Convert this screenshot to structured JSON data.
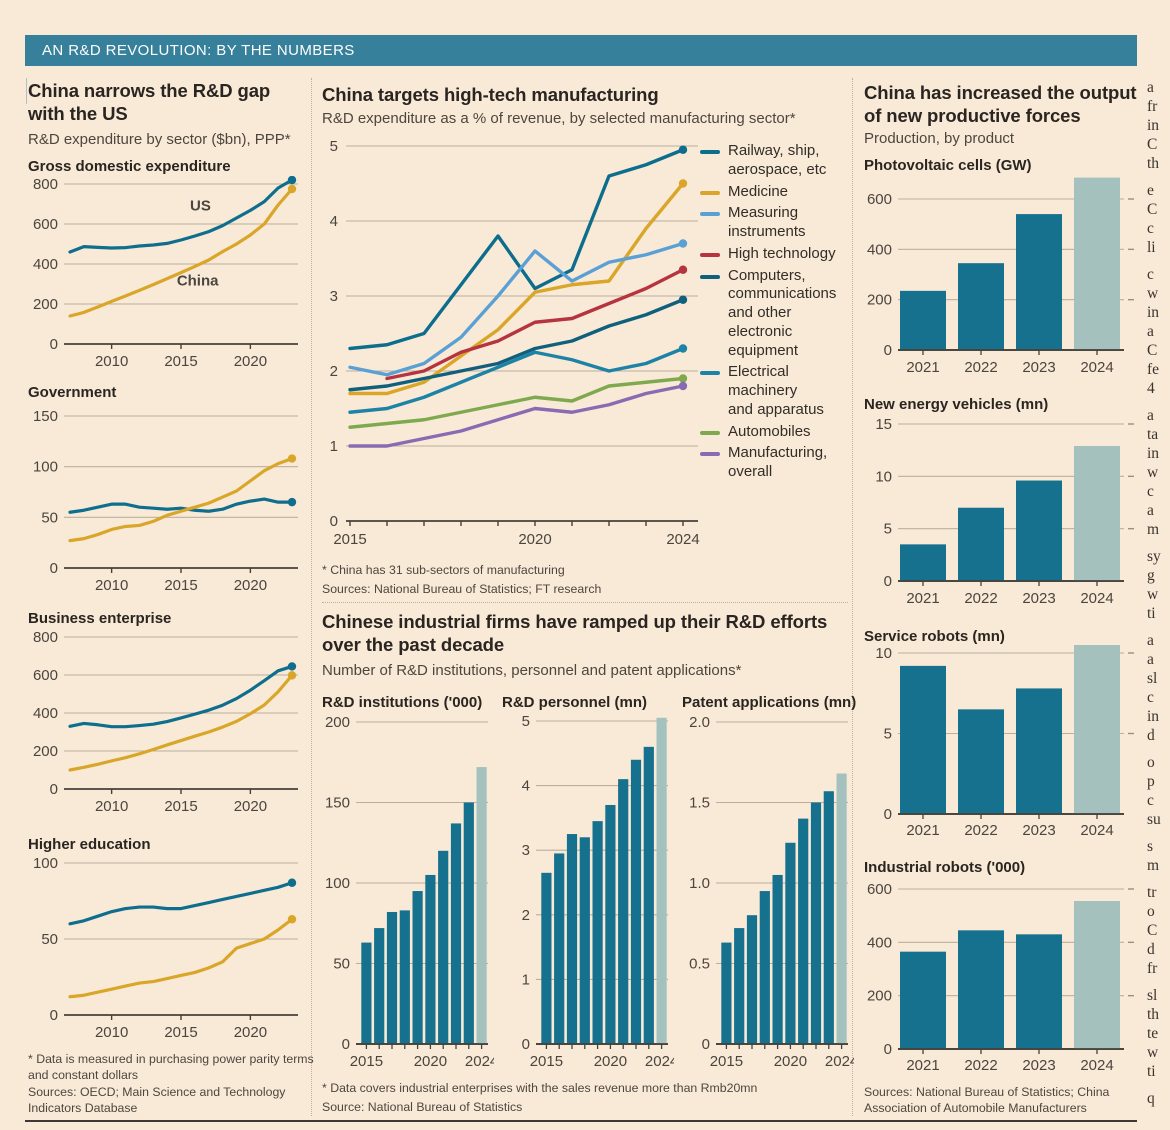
{
  "banner": {
    "title": "AN R&D REVOLUTION: BY THE NUMBERS"
  },
  "palette": {
    "background": "#f9ead8",
    "banner_bg": "#37809b",
    "grid": "#bcae9d",
    "axis": "#45403b",
    "tick_text": "#4b453e",
    "bar_teal": "#16718f",
    "bar_highlight": "#a5c1bd",
    "us_teal": "#0f6e8d",
    "china_gold": "#d9a629"
  },
  "left": {
    "headline": "China narrows the R&D gap with the US",
    "subtitle": "R&D expenditure by sector ($bn), PPP*",
    "footnote": "* Data is measured in purchasing power parity terms and constant dollars",
    "sources": "Sources: OECD; Main Science and Technology Indicators Database"
  },
  "mid_top": {
    "headline": "China targets high-tech manufacturing",
    "subtitle": "R&D expenditure as a % of revenue, by selected manufacturing sector*",
    "footnote": "* China has 31 sub-sectors of manufacturing",
    "sources": "Sources: National Bureau of Statistics; FT research"
  },
  "mid_bottom": {
    "headline": "Chinese industrial firms have ramped up their R&D efforts over the past decade",
    "subtitle": "Number of R&D institutions, personnel and patent applications*",
    "footnote": "* Data covers industrial enterprises with the sales revenue more than Rmb20mn",
    "sources": "Source: National Bureau of Statistics"
  },
  "right": {
    "headline": "China has increased the output of new productive forces",
    "subtitle": "Production, by product",
    "sources": "Sources: National Bureau of Statistics; China Association of Automobile Manufacturers"
  },
  "clipped_column": {
    "fragments": [
      "a",
      "fr",
      "in",
      "C",
      "th",
      "",
      "e",
      "C",
      "c",
      "li",
      "",
      "c",
      "w",
      "in",
      "a",
      "C",
      "fe",
      "4",
      "",
      "a",
      "ta",
      "in",
      "w",
      "c",
      "a",
      "m",
      "",
      "sy",
      "g",
      "w",
      "ti",
      "",
      "a",
      "a",
      "sl",
      "c",
      "in",
      "d",
      "",
      "o",
      "p",
      "c",
      "su",
      "",
      "s",
      "m",
      "",
      "tr",
      "o",
      "C",
      "d",
      "fr",
      "",
      "sl",
      "th",
      "te",
      "w",
      "ti",
      "",
      "q"
    ]
  },
  "chart_data": [
    {
      "id": "gde",
      "type": "line",
      "title": "Gross domestic expenditure",
      "x_start": 2007,
      "x_end": 2023,
      "x_tick_labels": [
        2010,
        2015,
        2020
      ],
      "yticks": [
        0,
        200,
        400,
        600,
        800
      ],
      "ytick_labels": [
        "0",
        "200",
        "400",
        "600",
        "800"
      ],
      "series": [
        {
          "name": "US",
          "color": "#0f6e8d",
          "values": [
            460,
            487,
            483,
            480,
            482,
            490,
            495,
            503,
            520,
            540,
            562,
            592,
            630,
            668,
            712,
            780,
            820
          ]
        },
        {
          "name": "China",
          "color": "#d9a629",
          "values": [
            140,
            158,
            185,
            213,
            240,
            268,
            297,
            327,
            357,
            388,
            420,
            462,
            500,
            545,
            600,
            695,
            775
          ]
        }
      ],
      "annotations": [
        {
          "text": "US",
          "year": 2016.4,
          "value": 668,
          "color": "#0f6e8d"
        },
        {
          "text": "China",
          "year": 2016.2,
          "value": 292,
          "color": "#d9a629"
        }
      ]
    },
    {
      "id": "government",
      "type": "line",
      "title": "Government",
      "x_start": 2007,
      "x_end": 2023,
      "x_tick_labels": [
        2010,
        2015,
        2020
      ],
      "yticks": [
        0,
        50,
        100,
        150
      ],
      "ytick_labels": [
        "0",
        "50",
        "100",
        "150"
      ],
      "series": [
        {
          "name": "US",
          "color": "#0f6e8d",
          "values": [
            55,
            57,
            60,
            63,
            63,
            60,
            59,
            58,
            59,
            57,
            56,
            58,
            63,
            66,
            68,
            65,
            65
          ]
        },
        {
          "name": "China",
          "color": "#d9a629",
          "values": [
            27,
            29,
            33,
            38,
            41,
            42,
            46,
            52,
            56,
            60,
            64,
            70,
            76,
            86,
            96,
            103,
            108
          ]
        }
      ]
    },
    {
      "id": "business",
      "type": "line",
      "title": "Business enterprise",
      "x_start": 2007,
      "x_end": 2023,
      "x_tick_labels": [
        2010,
        2015,
        2020
      ],
      "yticks": [
        0,
        200,
        400,
        600,
        800
      ],
      "ytick_labels": [
        "0",
        "200",
        "400",
        "600",
        "800"
      ],
      "series": [
        {
          "name": "US",
          "color": "#0f6e8d",
          "values": [
            330,
            345,
            338,
            328,
            328,
            334,
            341,
            355,
            374,
            394,
            415,
            441,
            476,
            520,
            570,
            622,
            645
          ]
        },
        {
          "name": "China",
          "color": "#d9a629",
          "values": [
            100,
            114,
            130,
            148,
            165,
            185,
            208,
            232,
            255,
            278,
            300,
            326,
            356,
            396,
            442,
            512,
            598
          ]
        }
      ]
    },
    {
      "id": "higher_education",
      "type": "line",
      "title": "Higher education",
      "x_start": 2007,
      "x_end": 2023,
      "x_tick_labels": [
        2010,
        2015,
        2020
      ],
      "yticks": [
        0,
        50,
        100
      ],
      "ytick_labels": [
        "0",
        "50",
        "100"
      ],
      "series": [
        {
          "name": "US",
          "color": "#0f6e8d",
          "values": [
            60,
            62,
            65,
            68,
            70,
            71,
            71,
            70,
            70,
            72,
            74,
            76,
            78,
            80,
            82,
            84,
            87
          ]
        },
        {
          "name": "China",
          "color": "#d9a629",
          "values": [
            12,
            13,
            15,
            17,
            19,
            21,
            22,
            24,
            26,
            28,
            31,
            35,
            44,
            47,
            50,
            56,
            63
          ]
        }
      ]
    },
    {
      "id": "sectors",
      "type": "line",
      "title": null,
      "x_start": 2015,
      "x_end": 2024,
      "x_tick_labels": [
        2015,
        2020,
        2024
      ],
      "yticks": [
        0,
        1,
        2,
        3,
        4,
        5
      ],
      "ytick_labels": [
        "0",
        "1",
        "2",
        "3",
        "4",
        "5"
      ],
      "series": [
        {
          "name": "Railway, ship,\naerospace, etc",
          "color": "#0d6d8c",
          "values": [
            2.3,
            2.35,
            2.5,
            3.15,
            3.8,
            3.1,
            3.35,
            4.6,
            4.75,
            4.95
          ]
        },
        {
          "name": "Medicine",
          "color": "#d9a629",
          "values": [
            1.7,
            1.7,
            1.85,
            2.2,
            2.55,
            3.05,
            3.15,
            3.2,
            3.9,
            4.5
          ]
        },
        {
          "name": "Measuring\ninstruments",
          "color": "#5aa0d5",
          "values": [
            2.05,
            1.95,
            2.1,
            2.45,
            3.0,
            3.6,
            3.2,
            3.45,
            3.55,
            3.7
          ]
        },
        {
          "name": "High technology",
          "color": "#b5343f",
          "values": [
            null,
            1.9,
            2.0,
            2.25,
            2.4,
            2.65,
            2.7,
            2.9,
            3.1,
            3.35
          ]
        },
        {
          "name": "Computers,\ncommunications\nand other\nelectronic\nequipment",
          "color": "#10607d",
          "values": [
            1.75,
            1.8,
            1.9,
            2.0,
            2.1,
            2.3,
            2.4,
            2.6,
            2.75,
            2.95
          ]
        },
        {
          "name": "Electrical\nmachinery\nand apparatus",
          "color": "#1d83a6",
          "values": [
            1.45,
            1.5,
            1.65,
            1.85,
            2.05,
            2.25,
            2.15,
            2.0,
            2.1,
            2.3
          ]
        },
        {
          "name": "Automobiles",
          "color": "#7ea94e",
          "values": [
            1.25,
            1.3,
            1.35,
            1.45,
            1.55,
            1.65,
            1.6,
            1.8,
            1.85,
            1.9
          ]
        },
        {
          "name": "Manufacturing,\noverall",
          "color": "#8a6ab2",
          "values": [
            1.0,
            1.0,
            1.1,
            1.2,
            1.35,
            1.5,
            1.45,
            1.55,
            1.7,
            1.8
          ]
        }
      ]
    },
    {
      "id": "institutions",
      "type": "bar",
      "title": "R&D institutions ('000)",
      "categories": [
        2015,
        2016,
        2017,
        2018,
        2019,
        2020,
        2021,
        2022,
        2023,
        2024
      ],
      "x_tick_labels": [
        2015,
        2020,
        2024
      ],
      "yticks": [
        0,
        50,
        100,
        150,
        200
      ],
      "ytick_labels": [
        "0",
        "50",
        "100",
        "150",
        "200"
      ],
      "values": [
        63,
        72,
        82,
        83,
        95,
        105,
        120,
        137,
        150,
        172
      ],
      "bar_color": "#16718f",
      "highlight_last": true,
      "highlight_color": "#a5c1bd"
    },
    {
      "id": "personnel",
      "type": "bar",
      "title": "R&D personnel (mn)",
      "categories": [
        2015,
        2016,
        2017,
        2018,
        2019,
        2020,
        2021,
        2022,
        2023,
        2024
      ],
      "x_tick_labels": [
        2015,
        2020,
        2024
      ],
      "yticks": [
        0,
        1,
        2,
        3,
        4,
        5
      ],
      "ytick_labels": [
        "0",
        "1",
        "2",
        "3",
        "4",
        "5"
      ],
      "values": [
        2.65,
        2.95,
        3.25,
        3.2,
        3.45,
        3.7,
        4.1,
        4.4,
        4.6,
        5.05
      ],
      "bar_color": "#16718f",
      "highlight_last": true,
      "highlight_color": "#a5c1bd"
    },
    {
      "id": "patents",
      "type": "bar",
      "title": "Patent applications (mn)",
      "categories": [
        2015,
        2016,
        2017,
        2018,
        2019,
        2020,
        2021,
        2022,
        2023,
        2024
      ],
      "x_tick_labels": [
        2015,
        2020,
        2024
      ],
      "yticks": [
        0,
        0.5,
        1,
        1.5,
        2
      ],
      "ytick_labels": [
        "0",
        "0.5",
        "1.0",
        "1.5",
        "2.0"
      ],
      "values": [
        0.63,
        0.72,
        0.8,
        0.95,
        1.05,
        1.25,
        1.4,
        1.5,
        1.57,
        1.68
      ],
      "bar_color": "#16718f",
      "highlight_last": true,
      "highlight_color": "#a5c1bd"
    },
    {
      "id": "pv",
      "type": "bar",
      "title": "Photovoltaic cells (GW)",
      "categories": [
        2021,
        2022,
        2023,
        2024
      ],
      "x_tick_labels": [
        2021,
        2022,
        2023,
        2024
      ],
      "yticks": [
        0,
        200,
        400,
        600
      ],
      "ytick_labels": [
        "0",
        "200",
        "400",
        "600"
      ],
      "values": [
        235,
        345,
        540,
        685
      ],
      "bar_color": "#16718f",
      "highlight_last": true,
      "highlight_color": "#a5c1bd"
    },
    {
      "id": "nev",
      "type": "bar",
      "title": "New energy vehicles (mn)",
      "categories": [
        2021,
        2022,
        2023,
        2024
      ],
      "x_tick_labels": [
        2021,
        2022,
        2023,
        2024
      ],
      "yticks": [
        0,
        5,
        10,
        15
      ],
      "ytick_labels": [
        "0",
        "5",
        "10",
        "15"
      ],
      "values": [
        3.5,
        7.0,
        9.6,
        12.9
      ],
      "bar_color": "#16718f",
      "highlight_last": true,
      "highlight_color": "#a5c1bd"
    },
    {
      "id": "service",
      "type": "bar",
      "title": "Service robots (mn)",
      "categories": [
        2021,
        2022,
        2023,
        2024
      ],
      "x_tick_labels": [
        2021,
        2022,
        2023,
        2024
      ],
      "yticks": [
        0,
        5,
        10
      ],
      "ytick_labels": [
        "0",
        "5",
        "10"
      ],
      "values": [
        9.2,
        6.5,
        7.8,
        10.5
      ],
      "bar_color": "#16718f",
      "highlight_last": true,
      "highlight_color": "#a5c1bd"
    },
    {
      "id": "industrial",
      "type": "bar",
      "title": "Industrial robots ('000)",
      "categories": [
        2021,
        2022,
        2023,
        2024
      ],
      "x_tick_labels": [
        2021,
        2022,
        2023,
        2024
      ],
      "yticks": [
        0,
        200,
        400,
        600
      ],
      "ytick_labels": [
        "0",
        "200",
        "400",
        "600"
      ],
      "values": [
        365,
        445,
        430,
        555
      ],
      "bar_color": "#16718f",
      "highlight_last": true,
      "highlight_color": "#a5c1bd"
    }
  ]
}
